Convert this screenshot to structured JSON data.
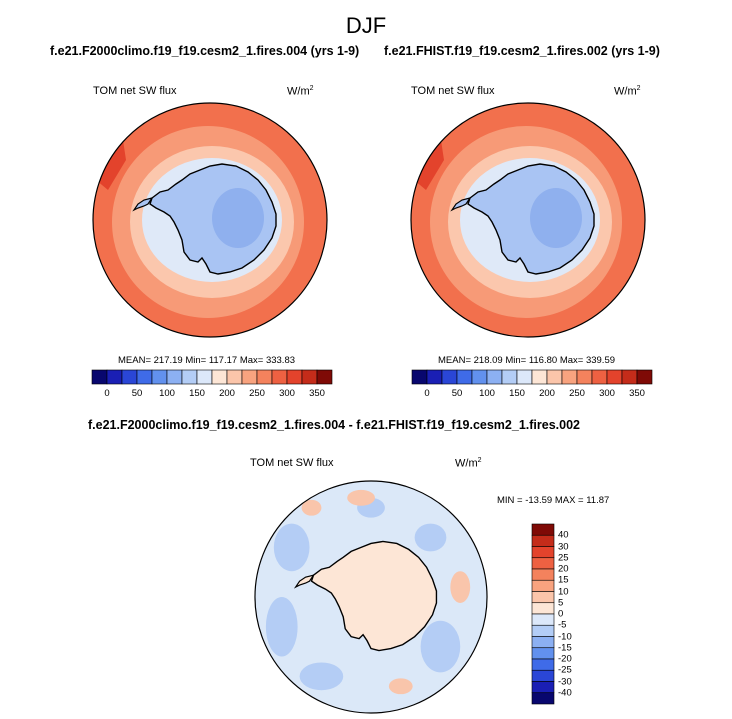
{
  "title": "DJF",
  "panels": [
    {
      "case": "f.e21.F2000climo.f19_f19.cesm2_1.fires.004 (yrs 1-9)",
      "variable": "TOM net SW flux",
      "units": "W/m",
      "units_sup": "2",
      "stats": "MEAN= 217.19  Min= 117.17  Max= 333.83"
    },
    {
      "case": "f.e21.FHIST.f19_f19.cesm2_1.fires.002 (yrs 1-9)",
      "variable": "TOM net SW flux",
      "units": "W/m",
      "units_sup": "2",
      "stats": "MEAN= 218.09  Min= 116.80  Max= 339.59"
    }
  ],
  "diff": {
    "case": "f.e21.F2000climo.f19_f19.cesm2_1.fires.004 - f.e21.FHIST.f19_f19.cesm2_1.fires.002",
    "variable": "TOM net SW flux",
    "units": "W/m",
    "units_sup": "2",
    "stats": "MIN = -13.59 MAX =  11.87"
  },
  "colorbar_main": {
    "ticks": [
      "0",
      "50",
      "100",
      "150",
      "200",
      "250",
      "300",
      "350"
    ],
    "colors": [
      "#08076e",
      "#1a1fb4",
      "#2a46d6",
      "#3f6be8",
      "#6291ee",
      "#8cb0f2",
      "#b3cdf6",
      "#dce8fa",
      "#fde6d6",
      "#fbc5aa",
      "#f8a37f",
      "#f4825d",
      "#ee6142",
      "#e3432c",
      "#c42c1a",
      "#7f0a06"
    ]
  },
  "colorbar_diff": {
    "labels": [
      "40",
      "30",
      "25",
      "20",
      "15",
      "10",
      "5",
      "0",
      "-5",
      "-10",
      "-15",
      "-20",
      "-25",
      "-30",
      "-40"
    ],
    "colors": [
      "#7f0a06",
      "#c42c1a",
      "#e3432c",
      "#ee6142",
      "#f4825d",
      "#f8a37f",
      "#fbc5aa",
      "#fde6d6",
      "#dce8fa",
      "#b3cdf6",
      "#8cb0f2",
      "#6291ee",
      "#3f6be8",
      "#2a46d6",
      "#1a1fb4",
      "#08076e"
    ]
  },
  "colors": {
    "ocean_edge": "#f2704d",
    "ocean_mid": "#f79a77",
    "ocean_inner": "#fbc7ad",
    "ice_ring": "#dfe9f8",
    "continent": "#a9c4f3",
    "continent_dark": "#8fb0ee",
    "diff_base": "#dbe8f8",
    "diff_land": "#fde6d6",
    "diff_blue": "#b4cdf5",
    "diff_red": "#f9c5ab"
  }
}
